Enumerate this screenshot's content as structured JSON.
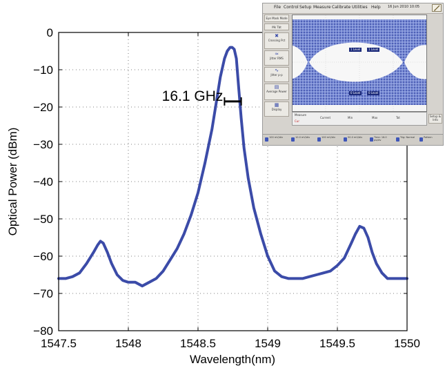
{
  "chart_data": {
    "type": "line",
    "xlabel": "Wavelength(nm)",
    "ylabel": "Optical Power (dBm)",
    "xlim": [
      1547.5,
      1550
    ],
    "ylim": [
      -80,
      0
    ],
    "xticks": [
      1547.5,
      1548,
      1548.5,
      1549,
      1549.5,
      1550
    ],
    "xtick_labels": [
      "1547.5",
      "1548",
      "1548.5",
      "1549",
      "1549.5",
      "1550"
    ],
    "yticks": [
      0,
      -10,
      -20,
      -30,
      -40,
      -50,
      -60,
      -70,
      -80
    ],
    "ytick_labels": [
      "0",
      "−10",
      "−20",
      "−30",
      "−40",
      "−50",
      "−60",
      "−70",
      "−80"
    ],
    "grid": true,
    "grid_style": "dotted",
    "series": [
      {
        "color": "#3b4ba8",
        "x": [
          1547.5,
          1547.55,
          1547.6,
          1547.65,
          1547.7,
          1547.75,
          1547.78,
          1547.8,
          1547.82,
          1547.85,
          1547.88,
          1547.92,
          1547.96,
          1548.0,
          1548.05,
          1548.1,
          1548.15,
          1548.2,
          1548.25,
          1548.3,
          1548.35,
          1548.4,
          1548.45,
          1548.5,
          1548.55,
          1548.6,
          1548.63,
          1548.66,
          1548.69,
          1548.71,
          1548.73,
          1548.745,
          1548.76,
          1548.775,
          1548.79,
          1548.81,
          1548.83,
          1548.86,
          1548.9,
          1548.95,
          1549.0,
          1549.05,
          1549.1,
          1549.15,
          1549.2,
          1549.25,
          1549.3,
          1549.35,
          1549.4,
          1549.45,
          1549.5,
          1549.55,
          1549.6,
          1549.63,
          1549.66,
          1549.69,
          1549.72,
          1549.75,
          1549.78,
          1549.82,
          1549.86,
          1549.9,
          1549.95,
          1550.0
        ],
        "y": [
          -66,
          -66,
          -65.5,
          -64.5,
          -62,
          -59,
          -57,
          -56,
          -56.5,
          -59,
          -62,
          -65,
          -66.5,
          -67,
          -67,
          -68,
          -67,
          -66,
          -64,
          -61,
          -58,
          -54,
          -49,
          -43,
          -35,
          -26,
          -19,
          -12,
          -7,
          -5,
          -4,
          -4,
          -4.5,
          -7,
          -14,
          -23,
          -31,
          -39,
          -47,
          -54,
          -60,
          -64,
          -65.5,
          -66,
          -66,
          -66,
          -65.5,
          -65,
          -64.5,
          -64,
          -62.5,
          -60.5,
          -56.5,
          -54,
          -52,
          -52.5,
          -55,
          -59,
          -62,
          -64.5,
          -66,
          -66,
          -66,
          -66
        ]
      }
    ],
    "annotation": {
      "text": "16.1 GHz",
      "x_start": 1548.69,
      "x_end": 1548.81,
      "y": -18.5
    }
  },
  "inset": {
    "menu": [
      "File",
      "Control",
      "Setup",
      "Measure",
      "Calibrate",
      "Utilities",
      "Help"
    ],
    "datetime": "16 Jun 2010  10:05",
    "sidebar": [
      {
        "label": "Eye Mask Mode",
        "icon": "eye-icon"
      },
      {
        "label": "Mk Tbt",
        "icon": "marker-icon"
      },
      {
        "label": "Crossing Pct",
        "icon": "crossing-icon"
      },
      {
        "label": "Jitter RMS",
        "icon": "jitter-icon"
      },
      {
        "label": "Jitter p-p",
        "icon": "jitter-pp-icon"
      },
      {
        "label": "Average Power",
        "icon": "power-icon"
      },
      {
        "label": "Display",
        "icon": "display-icon"
      }
    ],
    "levels": [
      "1 Level",
      "0 Level"
    ],
    "readout_tab": "Measure",
    "readouts": [
      "Cur",
      "Current",
      "Min",
      "Max",
      "Tot"
    ],
    "setup_label": "Setup & Info",
    "channels": [
      "100 mV/div",
      "10.0 mV/div",
      "100 mV/div",
      "50.0 mV/div",
      "Time: 16.0 ps/div",
      "Trig: Normal",
      "Pattern"
    ]
  }
}
